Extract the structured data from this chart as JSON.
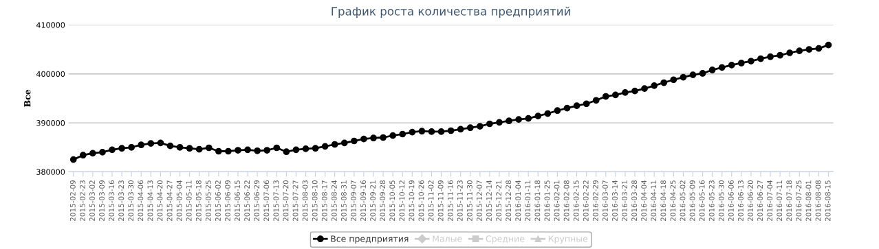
{
  "chart_data": {
    "type": "line",
    "title": "График роста количества предприятий",
    "ylabel": "Все",
    "categories": [
      "2015-02-09",
      "2015-02-23",
      "2015-03-02",
      "2015-03-09",
      "2015-03-16",
      "2015-03-23",
      "2015-03-30",
      "2015-04-06",
      "2015-04-13",
      "2015-04-20",
      "2015-04-27",
      "2015-05-04",
      "2015-05-11",
      "2015-05-18",
      "2015-05-25",
      "2015-06-02",
      "2015-06-09",
      "2015-06-15",
      "2015-06-22",
      "2015-06-29",
      "2015-07-06",
      "2015-07-13",
      "2015-07-20",
      "2015-07-27",
      "2015-08-03",
      "2015-08-10",
      "2015-08-17",
      "2015-08-24",
      "2015-08-31",
      "2015-09-07",
      "2015-09-16",
      "2015-09-21",
      "2015-09-28",
      "2015-10-05",
      "2015-10-12",
      "2015-10-19",
      "2015-10-26",
      "2015-11-02",
      "2015-11-09",
      "2015-11-16",
      "2015-11-23",
      "2015-11-30",
      "2015-12-07",
      "2015-12-14",
      "2015-12-21",
      "2015-12-28",
      "2016-01-04",
      "2016-01-11",
      "2016-01-18",
      "2016-01-25",
      "2016-02-01",
      "2016-02-08",
      "2016-02-15",
      "2016-02-22",
      "2016-02-29",
      "2016-03-07",
      "2016-03-14",
      "2016-03-21",
      "2016-03-28",
      "2016-04-04",
      "2016-04-11",
      "2016-04-18",
      "2016-04-25",
      "2016-05-02",
      "2016-05-09",
      "2016-05-16",
      "2016-05-23",
      "2016-05-30",
      "2016-06-06",
      "2016-06-13",
      "2016-06-20",
      "2016-06-27",
      "2016-07-04",
      "2016-07-11",
      "2016-07-18",
      "2016-07-25",
      "2016-08-01",
      "2016-08-08",
      "2016-08-15"
    ],
    "series": [
      {
        "name": "Все предприятия",
        "color": "#000000",
        "marker": "circle",
        "values": [
          382500,
          383400,
          383800,
          384000,
          384500,
          384800,
          385000,
          385500,
          385800,
          385900,
          385300,
          385000,
          384800,
          384600,
          384900,
          384200,
          384200,
          384400,
          384500,
          384300,
          384400,
          384900,
          384100,
          384500,
          384700,
          384800,
          385200,
          385600,
          385900,
          386300,
          386700,
          386900,
          387000,
          387400,
          387700,
          388100,
          388300,
          388200,
          388200,
          388400,
          388700,
          389000,
          389300,
          389800,
          390100,
          390400,
          390700,
          390900,
          391400,
          391900,
          392500,
          393000,
          393500,
          393900,
          394600,
          395400,
          395700,
          396200,
          396500,
          397000,
          397600,
          398200,
          398800,
          399300,
          399800,
          400100,
          400800,
          401300,
          401800,
          402200,
          402600,
          403100,
          403500,
          403800,
          404300,
          404700,
          405000,
          405200,
          405900
        ]
      },
      {
        "name": "Малые",
        "color": "#cccccc",
        "marker": "diamond",
        "values": [
          null,
          null,
          null,
          null,
          null,
          null,
          null,
          null,
          null,
          null,
          null,
          null,
          null,
          null,
          null,
          null,
          null,
          null,
          null,
          null,
          null,
          null,
          null,
          null,
          null,
          null,
          null,
          null,
          null,
          null,
          null,
          null,
          null,
          null,
          null,
          null,
          null,
          null,
          null,
          null,
          null,
          null,
          null,
          null,
          null,
          null,
          null,
          null,
          null,
          null,
          null,
          null,
          null,
          null,
          null,
          null,
          null,
          null,
          null,
          null,
          null,
          null,
          null,
          null,
          null,
          null,
          null,
          null,
          null,
          null,
          null,
          null,
          null,
          null,
          null,
          null,
          null,
          null,
          null
        ]
      },
      {
        "name": "Средние",
        "color": "#cccccc",
        "marker": "square",
        "values": [
          null,
          null,
          null,
          null,
          null,
          null,
          null,
          null,
          null,
          null,
          null,
          null,
          null,
          null,
          null,
          null,
          null,
          null,
          null,
          null,
          null,
          null,
          null,
          null,
          null,
          null,
          null,
          null,
          null,
          null,
          null,
          null,
          null,
          null,
          null,
          null,
          null,
          null,
          null,
          null,
          null,
          null,
          null,
          null,
          null,
          null,
          null,
          null,
          null,
          null,
          null,
          null,
          null,
          null,
          null,
          null,
          null,
          null,
          null,
          null,
          null,
          null,
          null,
          null,
          null,
          null,
          null,
          null,
          null,
          null,
          null,
          null,
          null,
          null,
          null,
          null,
          null,
          null,
          null
        ]
      },
      {
        "name": "Крупные",
        "color": "#cccccc",
        "marker": "triangle",
        "values": [
          null,
          null,
          null,
          null,
          null,
          null,
          null,
          null,
          null,
          null,
          null,
          null,
          null,
          null,
          null,
          null,
          null,
          null,
          null,
          null,
          null,
          null,
          null,
          null,
          null,
          null,
          null,
          null,
          null,
          null,
          null,
          null,
          null,
          null,
          null,
          null,
          null,
          null,
          null,
          null,
          null,
          null,
          null,
          null,
          null,
          null,
          null,
          null,
          null,
          null,
          null,
          null,
          null,
          null,
          null,
          null,
          null,
          null,
          null,
          null,
          null,
          null,
          null,
          null,
          null,
          null,
          null,
          null,
          null,
          null,
          null,
          null,
          null,
          null,
          null,
          null,
          null,
          null,
          null
        ]
      }
    ],
    "ylim": [
      380000,
      410000
    ],
    "yticks": [
      380000,
      390000,
      400000,
      410000
    ],
    "grid": "y",
    "legend": "bottom",
    "line_style": "solid"
  }
}
